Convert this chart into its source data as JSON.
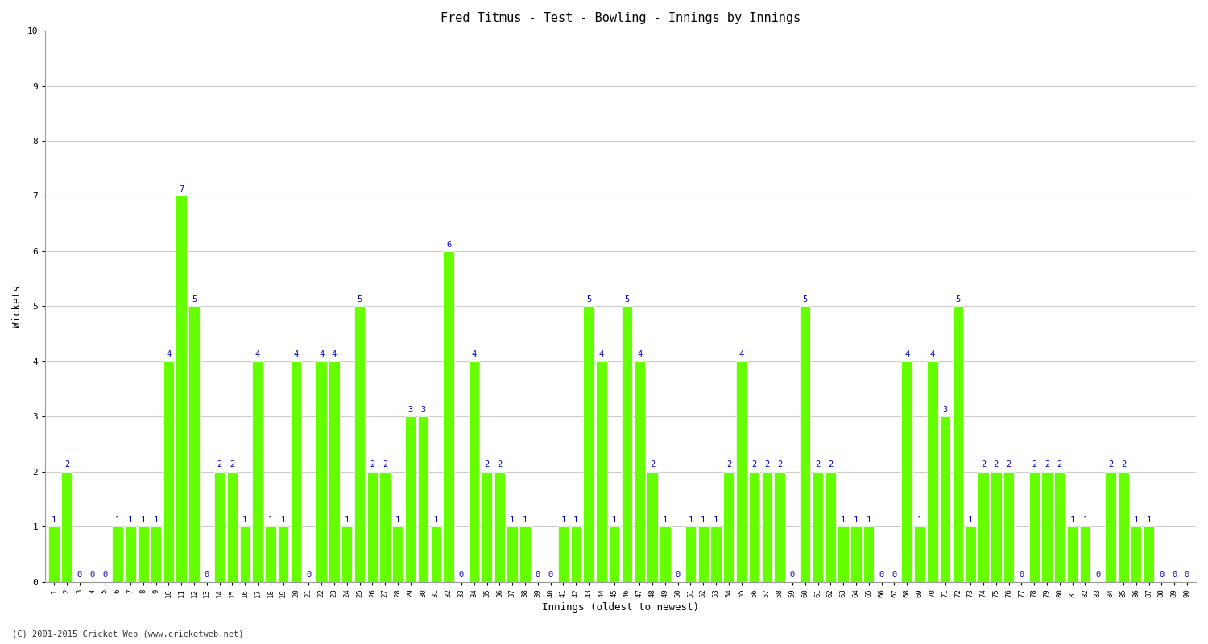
{
  "title": "Fred Titmus - Test - Bowling - Innings by Innings",
  "xlabel": "Innings (oldest to newest)",
  "ylabel": "Wickets",
  "footer": "(C) 2001-2015 Cricket Web (www.cricketweb.net)",
  "ylim": [
    0,
    10
  ],
  "yticks": [
    0,
    1,
    2,
    3,
    4,
    5,
    6,
    7,
    8,
    9,
    10
  ],
  "bar_color": "#66ff00",
  "bar_edge_color": "#ffffff",
  "label_color": "#0000cc",
  "categories": [
    "1",
    "2",
    "3",
    "4",
    "5",
    "6",
    "7",
    "8",
    "9",
    "10",
    "11",
    "12",
    "13",
    "14",
    "15",
    "16",
    "17",
    "18",
    "19",
    "20",
    "21",
    "22",
    "23",
    "24",
    "25",
    "26",
    "27",
    "28",
    "29",
    "30",
    "31",
    "32",
    "33",
    "34",
    "35",
    "36",
    "37",
    "38",
    "39",
    "40",
    "41",
    "42",
    "43",
    "44",
    "45",
    "46",
    "47",
    "48",
    "49",
    "50",
    "51",
    "52",
    "53",
    "54",
    "55",
    "56",
    "57",
    "58",
    "59",
    "60",
    "61",
    "62",
    "63",
    "64",
    "65",
    "66",
    "67",
    "68",
    "69",
    "70",
    "71",
    "72",
    "73",
    "74",
    "75",
    "76",
    "77",
    "78",
    "79",
    "80",
    "81",
    "82",
    "83",
    "84",
    "85",
    "86",
    "87",
    "88",
    "89",
    "90"
  ],
  "values": [
    1,
    2,
    0,
    0,
    0,
    1,
    1,
    1,
    1,
    4,
    7,
    5,
    0,
    2,
    2,
    1,
    4,
    1,
    1,
    4,
    0,
    4,
    4,
    1,
    5,
    2,
    2,
    1,
    3,
    3,
    1,
    6,
    0,
    4,
    2,
    2,
    1,
    1,
    0,
    0,
    1,
    1,
    5,
    4,
    1,
    5,
    4,
    2,
    1,
    0,
    1,
    1,
    1,
    2,
    4,
    2,
    2,
    2,
    0,
    5,
    2,
    2,
    1,
    1,
    1,
    0,
    0,
    4,
    1,
    4,
    3,
    5,
    1,
    2,
    2,
    2,
    0,
    2,
    2,
    2,
    1,
    1,
    0,
    2,
    2,
    1,
    1,
    0,
    0,
    0
  ],
  "background_color": "#ffffff",
  "grid_color": "#cccccc",
  "plot_bg_color": "#ffffff",
  "title_fontsize": 11,
  "axis_fontsize": 9,
  "label_fontsize": 7.5
}
